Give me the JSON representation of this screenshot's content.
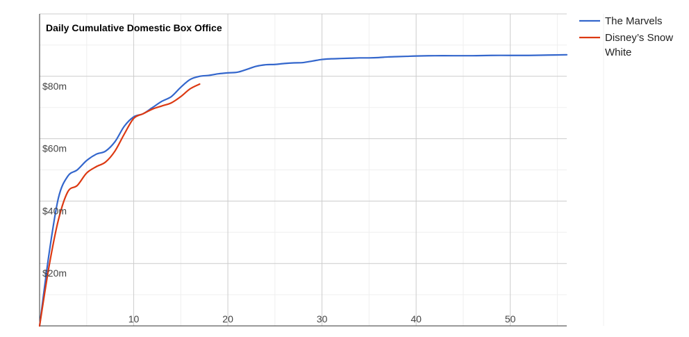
{
  "chart_data": {
    "type": "line",
    "title": "Daily Cumulative Domestic Box Office",
    "xlabel": "",
    "ylabel": "",
    "x_ticks": [
      10,
      20,
      30,
      40,
      50
    ],
    "y_ticks": [
      "$20m",
      "$40m",
      "$60m",
      "$80m"
    ],
    "y_tick_values": [
      20,
      40,
      60,
      80
    ],
    "xlim": [
      0,
      56
    ],
    "ylim": [
      0,
      100
    ],
    "grid": true,
    "legend_position": "right",
    "series": [
      {
        "name": "The Marvels",
        "color": "#3366cc",
        "x": [
          0,
          1,
          2,
          3,
          4,
          5,
          6,
          7,
          8,
          9,
          10,
          11,
          12,
          13,
          14,
          15,
          16,
          17,
          18,
          19,
          20,
          21,
          22,
          23,
          24,
          25,
          26,
          27,
          28,
          29,
          30,
          31,
          32,
          33,
          34,
          35,
          36,
          37,
          38,
          39,
          40,
          42,
          44,
          46,
          48,
          50,
          52,
          54,
          56
        ],
        "y": [
          0,
          23,
          41,
          48,
          50,
          53,
          55,
          56,
          59,
          64,
          67,
          68,
          70,
          72,
          73.5,
          76.5,
          79,
          80,
          80.3,
          80.8,
          81.1,
          81.3,
          82.2,
          83.2,
          83.7,
          83.8,
          84.1,
          84.3,
          84.4,
          84.9,
          85.4,
          85.6,
          85.7,
          85.8,
          85.9,
          85.9,
          86.0,
          86.2,
          86.3,
          86.4,
          86.5,
          86.6,
          86.6,
          86.6,
          86.7,
          86.7,
          86.7,
          86.8,
          86.9
        ]
      },
      {
        "name": "Disney’s Snow White",
        "color": "#dc3912",
        "x": [
          0,
          1,
          2,
          3,
          4,
          5,
          6,
          7,
          8,
          9,
          10,
          11,
          12,
          13,
          14,
          15,
          16,
          17
        ],
        "y": [
          0,
          19,
          34,
          43,
          45,
          49,
          51,
          52.5,
          56,
          61.5,
          66.5,
          68,
          69.5,
          70.5,
          71.5,
          73.5,
          76,
          77.5
        ]
      }
    ]
  }
}
